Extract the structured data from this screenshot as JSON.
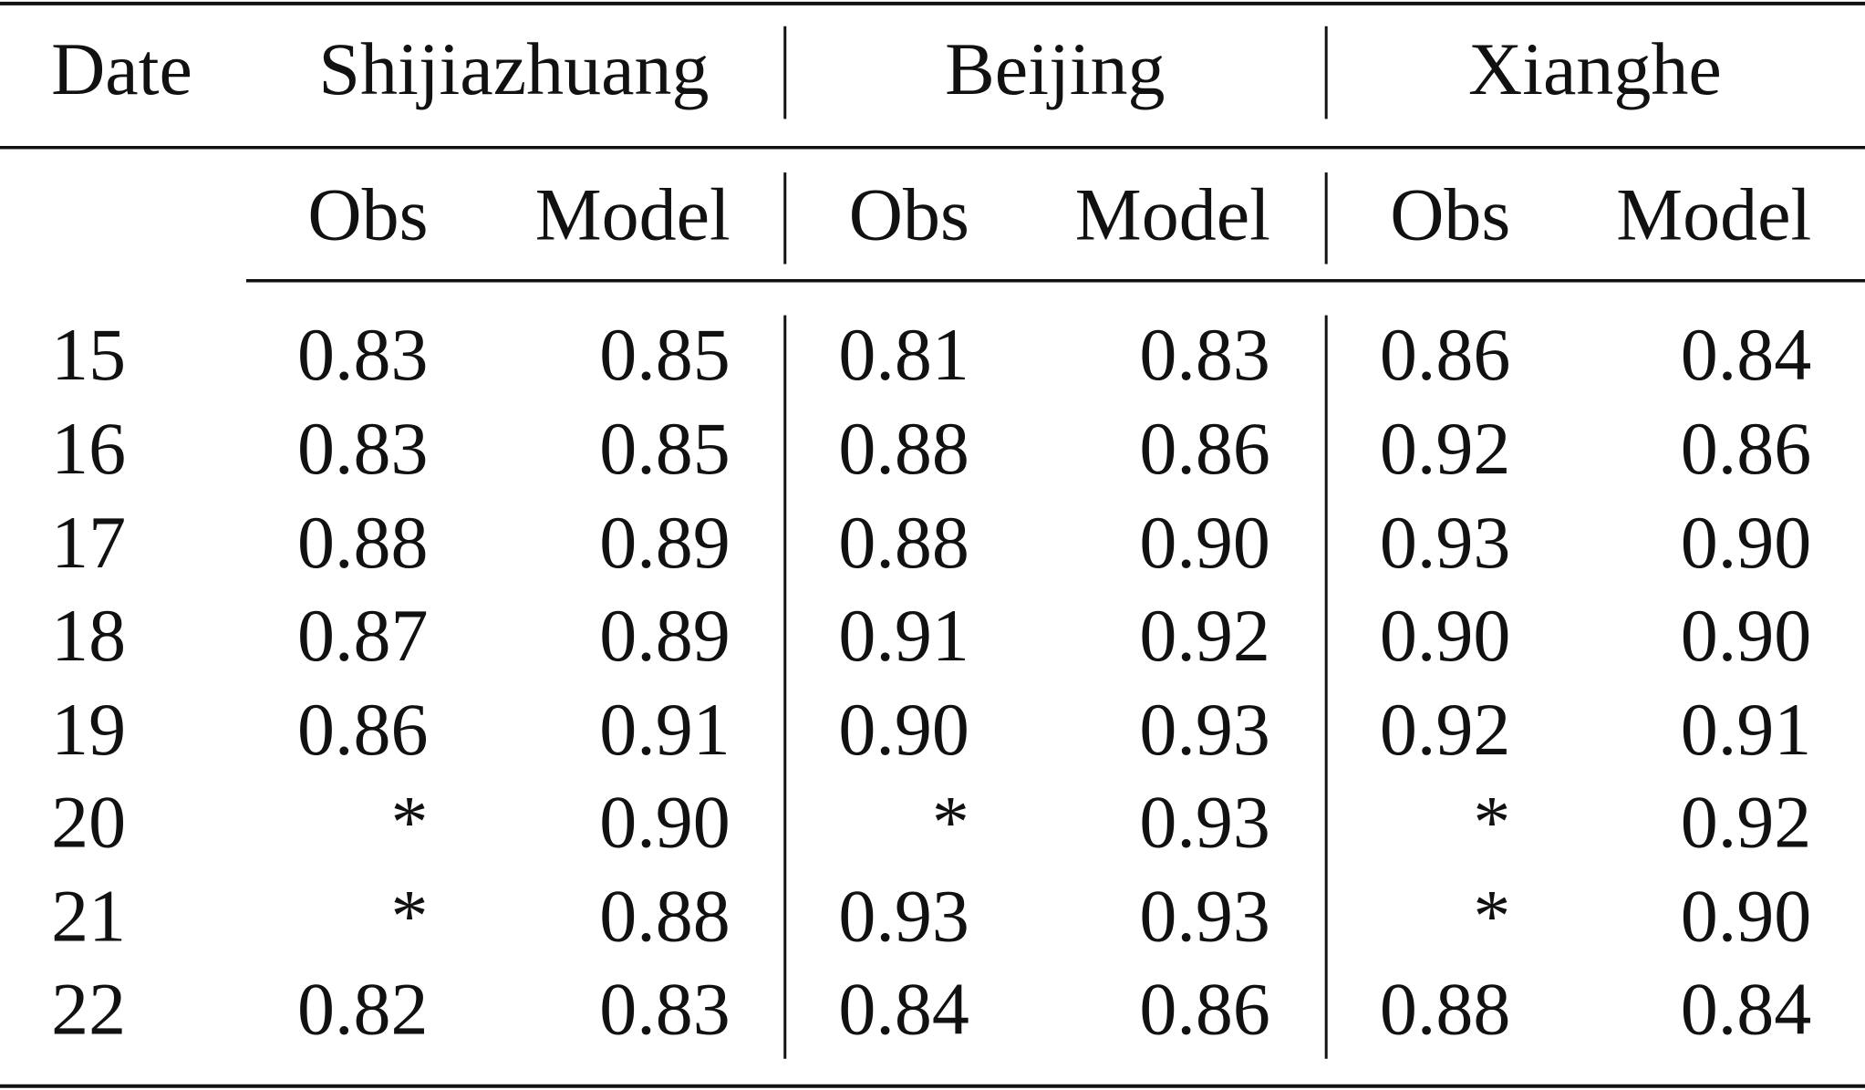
{
  "header": {
    "columns": [
      "Date",
      "Shijiazhuang",
      "Beijing",
      "Xianghe"
    ],
    "subcolumns": [
      "Obs",
      "Model",
      "Obs",
      "Model",
      "Obs",
      "Model"
    ]
  },
  "table": {
    "rows": [
      [
        "15",
        "0.83",
        "0.85",
        "0.81",
        "0.83",
        "0.86",
        "0.84"
      ],
      [
        "16",
        "0.83",
        "0.85",
        "0.88",
        "0.86",
        "0.92",
        "0.86"
      ],
      [
        "17",
        "0.88",
        "0.89",
        "0.88",
        "0.90",
        "0.93",
        "0.90"
      ],
      [
        "18",
        "0.87",
        "0.89",
        "0.91",
        "0.92",
        "0.90",
        "0.90"
      ],
      [
        "19",
        "0.86",
        "0.91",
        "0.90",
        "0.93",
        "0.92",
        "0.91"
      ],
      [
        "20",
        "*",
        "0.90",
        "*",
        "0.93",
        "*",
        "0.92"
      ],
      [
        "21",
        "*",
        "0.88",
        "0.93",
        "0.93",
        "*",
        "0.90"
      ],
      [
        "22",
        "0.82",
        "0.83",
        "0.84",
        "0.86",
        "0.88",
        "0.84"
      ]
    ]
  }
}
